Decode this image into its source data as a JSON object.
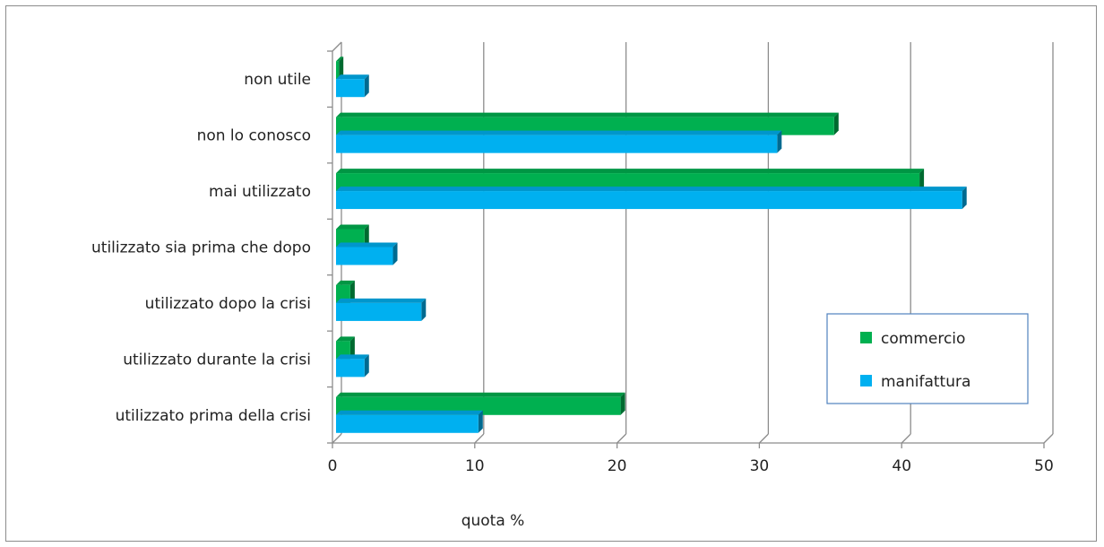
{
  "chart_data": {
    "type": "bar",
    "orientation": "horizontal",
    "categories": [
      "utilizzato prima della crisi",
      "utilizzato durante la crisi",
      "utilizzato dopo la crisi",
      "utilizzato sia prima che dopo",
      "mai utilizzato",
      "non lo conosco",
      "non utile"
    ],
    "series": [
      {
        "name": "commercio",
        "color": "#00b050",
        "values": [
          20,
          1,
          1,
          2,
          41,
          35,
          0.2
        ]
      },
      {
        "name": "manifattura",
        "color": "#00b0f0",
        "values": [
          10,
          2,
          6,
          4,
          44,
          31,
          2
        ]
      }
    ],
    "title": "",
    "xlabel": "quota %",
    "ylabel": "",
    "xlim": [
      0,
      50
    ],
    "xticks": [
      "0",
      "10",
      "20",
      "30",
      "40",
      "50"
    ],
    "grid": true,
    "legend_position": "bottom-right"
  }
}
